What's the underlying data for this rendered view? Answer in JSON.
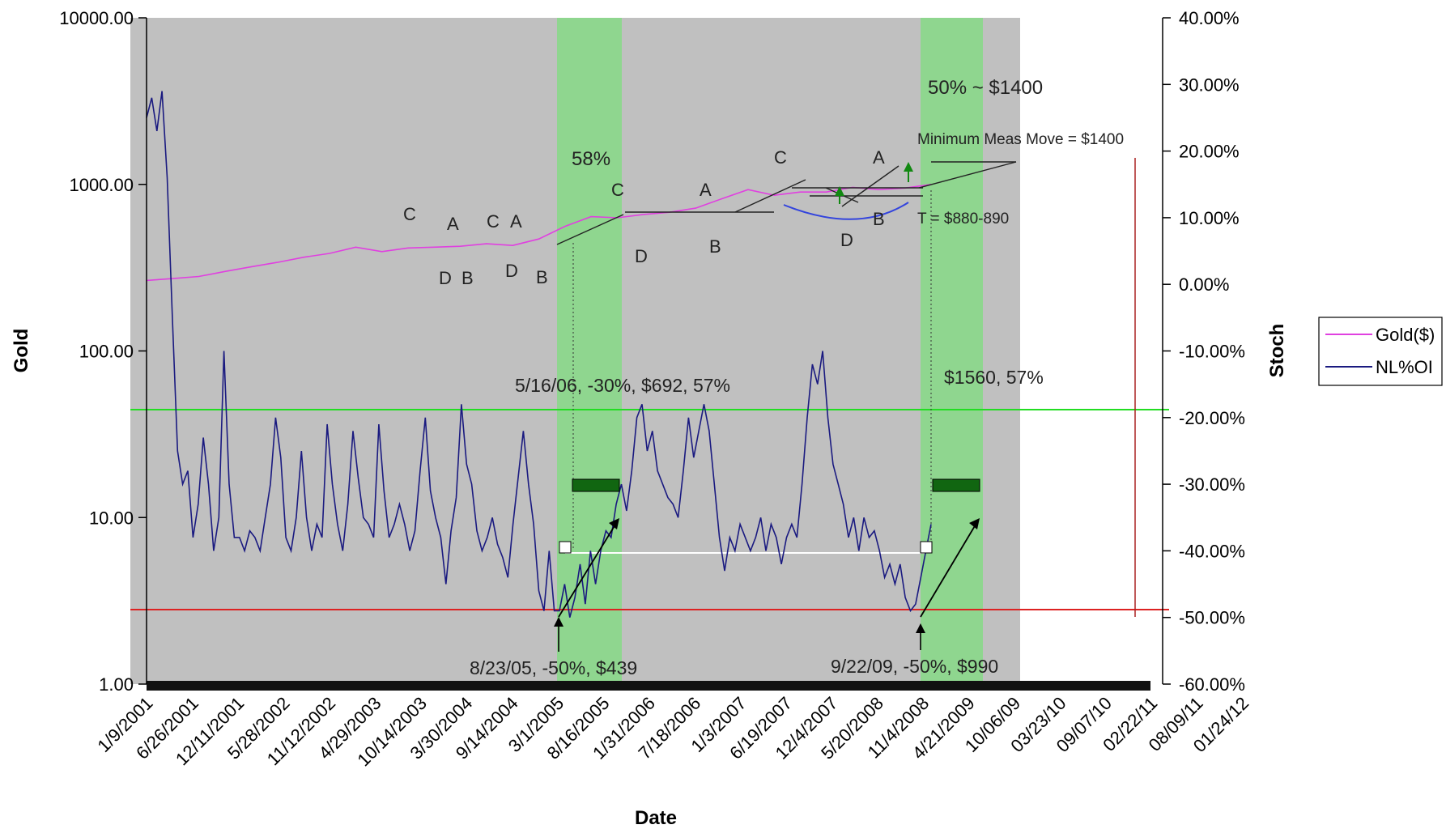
{
  "chart_data": {
    "type": "line",
    "xlabel": "Date",
    "ylabel_left": "Gold",
    "ylabel_right": "Stoch",
    "left_axis": {
      "scale": "log",
      "range": [
        1,
        10000
      ],
      "ticks": [
        "10000.00",
        "1000.00",
        "100.00",
        "10.00",
        "1.00"
      ]
    },
    "right_axis": {
      "range": [
        -60,
        40
      ],
      "ticks": [
        "40.00%",
        "30.00%",
        "20.00%",
        "10.00%",
        "0.00%",
        "-10.00%",
        "-20.00%",
        "-30.00%",
        "-40.00%",
        "-50.00%",
        "-60.00%"
      ]
    },
    "x_ticks": [
      "1/9/2001",
      "6/26/2001",
      "12/11/2001",
      "5/28/2002",
      "11/12/2002",
      "4/29/2003",
      "10/14/2003",
      "3/30/2004",
      "9/14/2004",
      "3/1/2005",
      "8/16/2005",
      "1/31/2006",
      "7/18/2006",
      "1/3/2007",
      "6/19/2007",
      "12/4/2007",
      "5/20/2008",
      "11/4/2008",
      "4/21/2009",
      "10/06/09",
      "03/23/10",
      "09/07/10",
      "02/22/11",
      "08/09/11",
      "01/24/12"
    ],
    "grid": false,
    "legend_position": "right",
    "legend": [
      {
        "name": "Gold($)",
        "color": "#e040e0"
      },
      {
        "name": "NL%OI",
        "color": "#1a1a80"
      }
    ],
    "series": [
      {
        "name": "Gold($)",
        "axis": "left",
        "color": "#e040e0",
        "points": [
          [
            0,
            265
          ],
          [
            1,
            272
          ],
          [
            2,
            280
          ],
          [
            3,
            300
          ],
          [
            4,
            320
          ],
          [
            5,
            340
          ],
          [
            6,
            365
          ],
          [
            7,
            385
          ],
          [
            8,
            420
          ],
          [
            9,
            395
          ],
          [
            10,
            415
          ],
          [
            11,
            420
          ],
          [
            12,
            425
          ],
          [
            13,
            440
          ],
          [
            14,
            430
          ],
          [
            15,
            470
          ],
          [
            16,
            560
          ],
          [
            17,
            640
          ],
          [
            18,
            630
          ],
          [
            19,
            660
          ],
          [
            20,
            680
          ],
          [
            21,
            720
          ],
          [
            22,
            820
          ],
          [
            23,
            930
          ],
          [
            24,
            860
          ],
          [
            25,
            900
          ],
          [
            26,
            900
          ],
          [
            27,
            960
          ],
          [
            28,
            930
          ],
          [
            29,
            950
          ],
          [
            30,
            1000
          ]
        ]
      },
      {
        "name": "NL%OI",
        "axis": "right",
        "color": "#1a1a80",
        "points": [
          [
            0,
            25
          ],
          [
            1,
            28
          ],
          [
            2,
            23
          ],
          [
            3,
            29
          ],
          [
            4,
            16
          ],
          [
            5,
            -5
          ],
          [
            6,
            -25
          ],
          [
            7,
            -30
          ],
          [
            8,
            -28
          ],
          [
            9,
            -38
          ],
          [
            10,
            -33
          ],
          [
            11,
            -23
          ],
          [
            12,
            -30
          ],
          [
            13,
            -40
          ],
          [
            14,
            -35
          ],
          [
            15,
            -10
          ],
          [
            16,
            -30
          ],
          [
            17,
            -38
          ],
          [
            18,
            -38
          ],
          [
            19,
            -40
          ],
          [
            20,
            -37
          ],
          [
            21,
            -38
          ],
          [
            22,
            -40
          ],
          [
            23,
            -35
          ],
          [
            24,
            -30
          ],
          [
            25,
            -20
          ],
          [
            26,
            -26
          ],
          [
            27,
            -38
          ],
          [
            28,
            -40
          ],
          [
            29,
            -35
          ],
          [
            30,
            -25
          ],
          [
            31,
            -35
          ],
          [
            32,
            -40
          ],
          [
            33,
            -36
          ],
          [
            34,
            -38
          ],
          [
            35,
            -21
          ],
          [
            36,
            -30
          ],
          [
            37,
            -36
          ],
          [
            38,
            -40
          ],
          [
            39,
            -33
          ],
          [
            40,
            -22
          ],
          [
            41,
            -29
          ],
          [
            42,
            -35
          ],
          [
            43,
            -36
          ],
          [
            44,
            -38
          ],
          [
            45,
            -21
          ],
          [
            46,
            -31
          ],
          [
            47,
            -38
          ],
          [
            48,
            -36
          ],
          [
            49,
            -33
          ],
          [
            50,
            -36
          ],
          [
            51,
            -40
          ],
          [
            52,
            -37
          ],
          [
            53,
            -28
          ],
          [
            54,
            -20
          ],
          [
            55,
            -31
          ],
          [
            56,
            -35
          ],
          [
            57,
            -38
          ],
          [
            58,
            -45
          ],
          [
            59,
            -37
          ],
          [
            60,
            -32
          ],
          [
            61,
            -18
          ],
          [
            62,
            -27
          ],
          [
            63,
            -30
          ],
          [
            64,
            -37
          ],
          [
            65,
            -40
          ],
          [
            66,
            -38
          ],
          [
            67,
            -35
          ],
          [
            68,
            -39
          ],
          [
            69,
            -41
          ],
          [
            70,
            -44
          ],
          [
            71,
            -36
          ],
          [
            72,
            -29
          ],
          [
            73,
            -22
          ],
          [
            74,
            -30
          ],
          [
            75,
            -36
          ],
          [
            76,
            -46
          ],
          [
            77,
            -49
          ],
          [
            78,
            -40
          ],
          [
            79,
            -49
          ],
          [
            80,
            -49
          ],
          [
            81,
            -45
          ],
          [
            82,
            -50
          ],
          [
            83,
            -47
          ],
          [
            84,
            -42
          ],
          [
            85,
            -48
          ],
          [
            86,
            -40
          ],
          [
            87,
            -45
          ],
          [
            88,
            -40
          ],
          [
            89,
            -37
          ],
          [
            90,
            -38
          ],
          [
            91,
            -33
          ],
          [
            92,
            -30
          ],
          [
            93,
            -34
          ],
          [
            94,
            -28
          ],
          [
            95,
            -20
          ],
          [
            96,
            -18
          ],
          [
            97,
            -25
          ],
          [
            98,
            -22
          ],
          [
            99,
            -28
          ],
          [
            100,
            -30
          ],
          [
            101,
            -32
          ],
          [
            102,
            -33
          ],
          [
            103,
            -35
          ],
          [
            104,
            -28
          ],
          [
            105,
            -20
          ],
          [
            106,
            -26
          ],
          [
            107,
            -22
          ],
          [
            108,
            -18
          ],
          [
            109,
            -22
          ],
          [
            110,
            -30
          ],
          [
            111,
            -38
          ],
          [
            112,
            -43
          ],
          [
            113,
            -38
          ],
          [
            114,
            -40
          ],
          [
            115,
            -36
          ],
          [
            116,
            -38
          ],
          [
            117,
            -40
          ],
          [
            118,
            -38
          ],
          [
            119,
            -35
          ],
          [
            120,
            -40
          ],
          [
            121,
            -36
          ],
          [
            122,
            -38
          ],
          [
            123,
            -42
          ],
          [
            124,
            -38
          ],
          [
            125,
            -36
          ],
          [
            126,
            -38
          ],
          [
            127,
            -30
          ],
          [
            128,
            -20
          ],
          [
            129,
            -12
          ],
          [
            130,
            -15
          ],
          [
            131,
            -10
          ],
          [
            132,
            -20
          ],
          [
            133,
            -27
          ],
          [
            134,
            -30
          ],
          [
            135,
            -33
          ],
          [
            136,
            -38
          ],
          [
            137,
            -35
          ],
          [
            138,
            -40
          ],
          [
            139,
            -35
          ],
          [
            140,
            -38
          ],
          [
            141,
            -37
          ],
          [
            142,
            -40
          ],
          [
            143,
            -44
          ],
          [
            144,
            -42
          ],
          [
            145,
            -45
          ],
          [
            146,
            -42
          ],
          [
            147,
            -47
          ],
          [
            148,
            -49
          ],
          [
            149,
            -48
          ],
          [
            150,
            -44
          ],
          [
            151,
            -40
          ],
          [
            152,
            -36
          ]
        ]
      }
    ],
    "reference_lines": [
      {
        "axis": "right",
        "value": -18.5,
        "color": "#22dd22"
      },
      {
        "axis": "right",
        "value": -48.5,
        "color": "#dd2222"
      },
      {
        "axis": "right",
        "value": -40.3,
        "color": "#ffffff"
      }
    ],
    "highlight_bands": [
      {
        "from": "1/31/2006",
        "to": "7/18/2006",
        "color": "#8fd68f"
      },
      {
        "from": "10/06/09",
        "to": "03/23/10",
        "color": "#8fd68f"
      }
    ],
    "annotations": [
      {
        "text": "50% ~ $1400"
      },
      {
        "text": "Minimum Meas Move = $1400"
      },
      {
        "text": "58%"
      },
      {
        "text": "T = $880-890"
      },
      {
        "text": "5/16/06, -30%, $692, 57%"
      },
      {
        "text": "$1560, 57%"
      },
      {
        "text": "8/23/05, -50%, $439"
      },
      {
        "text": "9/22/09, -50%, $990"
      }
    ],
    "pattern_labels": [
      "C",
      "A",
      "C",
      "A",
      "D",
      "B",
      "D",
      "B",
      "C",
      "D",
      "A",
      "B",
      "C",
      "A",
      "D",
      "B"
    ]
  }
}
